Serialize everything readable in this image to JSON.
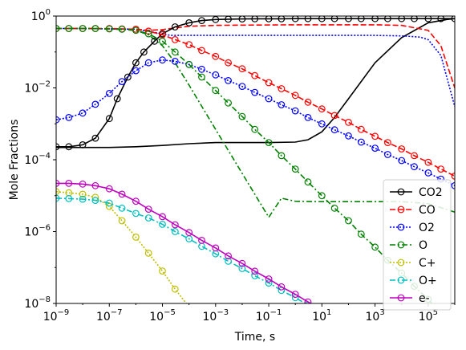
{
  "chart_data": {
    "type": "line",
    "xlabel": "Time, s",
    "ylabel": "Mole Fractions",
    "x_scale": "log",
    "y_scale": "log",
    "xlim": [
      1e-09,
      1000000.0
    ],
    "ylim": [
      1e-08,
      1
    ],
    "x_ticks": [
      {
        "value": 1e-09,
        "base": "10",
        "exp": "−9"
      },
      {
        "value": 1e-07,
        "base": "10",
        "exp": "−7"
      },
      {
        "value": 1e-05,
        "base": "10",
        "exp": "−5"
      },
      {
        "value": 0.001,
        "base": "10",
        "exp": "−3"
      },
      {
        "value": 0.1,
        "base": "10",
        "exp": "−1"
      },
      {
        "value": 10.0,
        "base": "10",
        "exp": "1"
      },
      {
        "value": 1000.0,
        "base": "10",
        "exp": "3"
      },
      {
        "value": 100000.0,
        "base": "10",
        "exp": "5"
      }
    ],
    "y_ticks": [
      {
        "value": 1e-08,
        "base": "10",
        "exp": "−8"
      },
      {
        "value": 1e-06,
        "base": "10",
        "exp": "−6"
      },
      {
        "value": 0.0001,
        "base": "10",
        "exp": "−4"
      },
      {
        "value": 0.01,
        "base": "10",
        "exp": "−2"
      },
      {
        "value": 1,
        "base": "10",
        "exp": "0"
      }
    ],
    "legend_position": "bottom-right",
    "grid": false,
    "line_series": [
      {
        "name": "CO2",
        "color": "#000000",
        "style": "solid",
        "x": [
          1e-09,
          3e-09,
          1e-08,
          1e-07,
          1e-06,
          1e-05,
          0.0001,
          0.001,
          0.01,
          0.1,
          1,
          3,
          10,
          30,
          100,
          1000,
          10000.0,
          100000.0,
          500000.0,
          1000000.0
        ],
        "y": [
          0.00022,
          0.00022,
          0.00022,
          0.00022,
          0.00023,
          0.00025,
          0.00028,
          0.0003,
          0.0003,
          0.0003,
          0.00031,
          0.00036,
          0.0006,
          0.0015,
          0.005,
          0.05,
          0.25,
          0.65,
          0.8,
          0.85
        ]
      },
      {
        "name": "CO",
        "color": "#ff0000",
        "style": "dashed",
        "x": [
          1e-09,
          1e-08,
          1e-07,
          1e-06,
          3e-06,
          1e-05,
          0.0001,
          0.001,
          0.01,
          1,
          100,
          1000,
          10000.0,
          100000.0,
          300000.0,
          1000000.0
        ],
        "y": [
          0.45,
          0.45,
          0.44,
          0.43,
          0.4,
          0.42,
          0.52,
          0.55,
          0.56,
          0.57,
          0.57,
          0.57,
          0.55,
          0.4,
          0.15,
          0.01
        ]
      },
      {
        "name": "O2",
        "color": "#0000ff",
        "style": "dotted",
        "x": [
          1e-09,
          1e-08,
          1e-07,
          1e-06,
          1e-05,
          2e-05,
          0.0001,
          0.001,
          0.01,
          1,
          100,
          1000,
          10000.0,
          50000.0,
          100000.0,
          300000.0,
          1000000.0
        ],
        "y": [
          0.45,
          0.45,
          0.44,
          0.43,
          0.32,
          0.29,
          0.29,
          0.29,
          0.29,
          0.29,
          0.29,
          0.29,
          0.28,
          0.26,
          0.22,
          0.08,
          0.003
        ]
      },
      {
        "name": "O",
        "color": "#008000",
        "style": "dashdot",
        "x": [
          1e-09,
          1e-08,
          1e-07,
          1e-06,
          3e-06,
          1e-05,
          3e-05,
          0.0001,
          0.001,
          0.01,
          0.1,
          0.3,
          1,
          10,
          100,
          1000,
          10000.0,
          100000.0,
          1000000.0
        ],
        "y": [
          0.45,
          0.45,
          0.44,
          0.4,
          0.3,
          0.15,
          0.05,
          0.012,
          0.0007,
          4.2e-05,
          2.5e-06,
          8.5e-06,
          7e-06,
          6.8e-06,
          6.8e-06,
          6.8e-06,
          6.8e-06,
          6e-06,
          3.5e-06
        ]
      }
    ],
    "marker_series": [
      {
        "name": "CO2",
        "color": "#000000",
        "x": [
          1e-09,
          3e-09,
          1e-08,
          3e-08,
          1e-07,
          2e-07,
          5e-07,
          1e-06,
          2e-06,
          5e-06,
          1e-05,
          3e-05,
          0.0001,
          0.0003,
          0.001,
          0.003,
          0.01,
          0.03,
          0.1,
          0.3,
          1,
          3,
          10,
          30,
          100,
          300,
          1000,
          3000,
          10000.0,
          30000.0,
          100000.0,
          300000.0,
          1000000.0
        ],
        "y": [
          0.00023,
          0.00023,
          0.00026,
          0.0004,
          0.0014,
          0.005,
          0.02,
          0.05,
          0.1,
          0.2,
          0.32,
          0.5,
          0.65,
          0.75,
          0.8,
          0.82,
          0.83,
          0.84,
          0.84,
          0.84,
          0.85,
          0.85,
          0.85,
          0.85,
          0.85,
          0.85,
          0.85,
          0.85,
          0.85,
          0.85,
          0.85,
          0.85,
          0.85
        ]
      },
      {
        "name": "CO",
        "color": "#ff0000",
        "x": [
          1e-09,
          3e-09,
          1e-08,
          3e-08,
          1e-07,
          3e-07,
          1e-06,
          3e-06,
          1e-05,
          3e-05,
          0.0001,
          0.0003,
          0.001,
          0.003,
          0.01,
          0.03,
          0.1,
          0.3,
          1,
          3,
          10,
          30,
          100,
          300,
          1000,
          3000,
          10000.0,
          30000.0,
          100000.0,
          300000.0,
          1000000.0
        ],
        "y": [
          0.45,
          0.45,
          0.45,
          0.45,
          0.45,
          0.44,
          0.43,
          0.38,
          0.3,
          0.22,
          0.16,
          0.11,
          0.075,
          0.05,
          0.034,
          0.022,
          0.014,
          0.0095,
          0.0062,
          0.004,
          0.0026,
          0.0017,
          0.0011,
          0.0007,
          0.00045,
          0.0003,
          0.0002,
          0.00013,
          8.5e-05,
          5.5e-05,
          3.5e-05
        ]
      },
      {
        "name": "O2",
        "color": "#0000ff",
        "x": [
          1e-09,
          3e-09,
          1e-08,
          3e-08,
          1e-07,
          3e-07,
          1e-06,
          3e-06,
          1e-05,
          3e-05,
          0.0001,
          0.0003,
          0.001,
          0.003,
          0.01,
          0.03,
          0.1,
          0.3,
          1,
          3,
          10,
          30,
          100,
          300,
          1000,
          3000,
          10000.0,
          30000.0,
          100000.0,
          300000.0,
          1000000.0
        ],
        "y": [
          0.0013,
          0.0015,
          0.002,
          0.0035,
          0.007,
          0.015,
          0.03,
          0.05,
          0.06,
          0.055,
          0.045,
          0.033,
          0.023,
          0.016,
          0.011,
          0.0075,
          0.005,
          0.0034,
          0.0023,
          0.0015,
          0.001,
          0.00068,
          0.00046,
          0.00031,
          0.00021,
          0.00014,
          9.5e-05,
          6.4e-05,
          4.3e-05,
          2.9e-05,
          1.9e-05
        ]
      },
      {
        "name": "O",
        "color": "#008000",
        "x": [
          1e-09,
          3e-09,
          1e-08,
          3e-08,
          1e-07,
          3e-07,
          1e-06,
          3e-06,
          1e-05,
          3e-05,
          0.0001,
          0.0003,
          0.001,
          0.003,
          0.01,
          0.03,
          0.1,
          0.3,
          1,
          3,
          10,
          30,
          100,
          300,
          1000,
          3000,
          10000.0,
          30000.0,
          100000.0,
          300000.0,
          1000000.0
        ],
        "y": [
          0.45,
          0.45,
          0.45,
          0.45,
          0.44,
          0.43,
          0.4,
          0.32,
          0.2,
          0.1,
          0.045,
          0.02,
          0.0085,
          0.0038,
          0.0016,
          0.0007,
          0.0003,
          0.00013,
          5.5e-05,
          2.4e-05,
          1e-05,
          4.5e-06,
          2e-06,
          8.5e-07,
          3.7e-07,
          1.6e-07,
          7e-08,
          3e-08,
          1.3e-08,
          5.5e-09,
          2.4e-09
        ]
      },
      {
        "name": "C+",
        "color": "#bfbf00",
        "x": [
          1e-09,
          3e-09,
          1e-08,
          3e-08,
          1e-07,
          3e-07,
          1e-06,
          3e-06,
          1e-05,
          3e-05,
          0.0001
        ],
        "y": [
          1.3e-05,
          1.2e-05,
          1.1e-05,
          9e-06,
          5e-06,
          2e-06,
          7e-07,
          2.5e-07,
          8e-08,
          2.5e-08,
          8e-09
        ]
      },
      {
        "name": "O+",
        "color": "#00bfbf",
        "x": [
          1e-09,
          3e-09,
          1e-08,
          3e-08,
          1e-07,
          3e-07,
          1e-06,
          3e-06,
          1e-05,
          3e-05,
          0.0001,
          0.0003,
          0.001,
          0.003,
          0.01,
          0.03,
          0.1,
          0.3,
          1,
          3,
          10
        ],
        "y": [
          8.5e-06,
          8.3e-06,
          8e-06,
          7.4e-06,
          6.2e-06,
          4.5e-06,
          3.2e-06,
          2.4e-06,
          1.6e-06,
          1e-06,
          6.3e-07,
          3.9e-07,
          2.4e-07,
          1.5e-07,
          9.4e-08,
          5.9e-08,
          3.7e-08,
          2.3e-08,
          1.45e-08,
          9e-09,
          5.6e-09
        ]
      },
      {
        "name": "e-",
        "color": "#bf00bf",
        "x": [
          1e-09,
          3e-09,
          1e-08,
          3e-08,
          1e-07,
          3e-07,
          1e-06,
          3e-06,
          1e-05,
          3e-05,
          0.0001,
          0.0003,
          0.001,
          0.003,
          0.01,
          0.03,
          0.1,
          0.3,
          1,
          3,
          10
        ],
        "y": [
          2.2e-05,
          2.2e-05,
          2.1e-05,
          1.9e-05,
          1.55e-05,
          1.1e-05,
          7e-06,
          4.2e-06,
          2.6e-06,
          1.55e-06,
          9.4e-07,
          5.7e-07,
          3.5e-07,
          2.1e-07,
          1.3e-07,
          7.9e-08,
          4.8e-08,
          2.9e-08,
          1.8e-08,
          1.1e-08,
          6.6e-09
        ]
      }
    ],
    "legend": [
      {
        "label": "CO2",
        "color": "#000000",
        "style": "solid"
      },
      {
        "label": "CO",
        "color": "#ff0000",
        "style": "dashed"
      },
      {
        "label": "O2",
        "color": "#0000ff",
        "style": "dotted"
      },
      {
        "label": "O",
        "color": "#008000",
        "style": "dashdot"
      },
      {
        "label": "C+",
        "color": "#bfbf00",
        "style": "dotted"
      },
      {
        "label": "O+",
        "color": "#00bfbf",
        "style": "dashdot"
      },
      {
        "label": "e-",
        "color": "#bf00bf",
        "style": "solid"
      }
    ]
  }
}
